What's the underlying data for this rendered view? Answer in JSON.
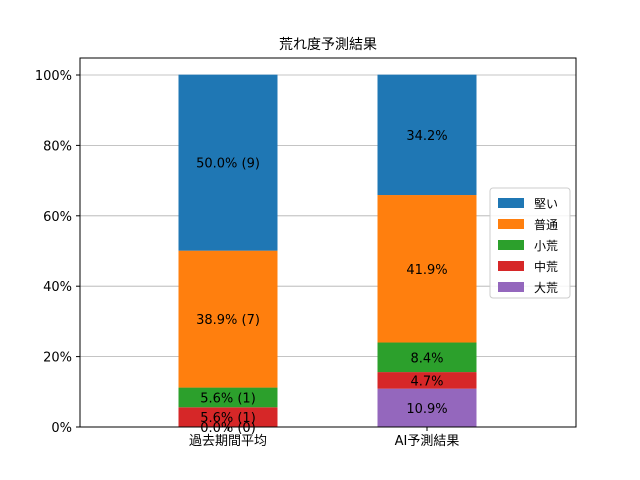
{
  "chart_data": {
    "type": "bar",
    "stacked": true,
    "title": "荒れ度予測結果",
    "xlabel": "",
    "ylabel": "",
    "ylim": [
      0,
      100
    ],
    "yticks": [
      "0%",
      "20%",
      "40%",
      "60%",
      "80%",
      "100%"
    ],
    "grid": "horizontal",
    "categories": [
      "過去期間平均",
      "AI予測結果"
    ],
    "series": [
      {
        "name": "大荒",
        "color": "#9467bd",
        "values": [
          0.0,
          10.9
        ],
        "labels": [
          "0.0% (0)",
          "10.9%"
        ]
      },
      {
        "name": "中荒",
        "color": "#d62728",
        "values": [
          5.6,
          4.7
        ],
        "labels": [
          "5.6% (1)",
          "4.7%"
        ]
      },
      {
        "name": "小荒",
        "color": "#2ca02c",
        "values": [
          5.6,
          8.4
        ],
        "labels": [
          "5.6% (1)",
          "8.4%"
        ]
      },
      {
        "name": "普通",
        "color": "#ff7f0e",
        "values": [
          38.9,
          41.9
        ],
        "labels": [
          "38.9% (7)",
          "41.9%"
        ]
      },
      {
        "name": "堅い",
        "color": "#1f77b4",
        "values": [
          50.0,
          34.2
        ],
        "labels": [
          "50.0% (9)",
          "34.2%"
        ]
      }
    ],
    "legend_order": [
      "堅い",
      "普通",
      "小荒",
      "中荒",
      "大荒"
    ],
    "legend_position": "center-right"
  }
}
